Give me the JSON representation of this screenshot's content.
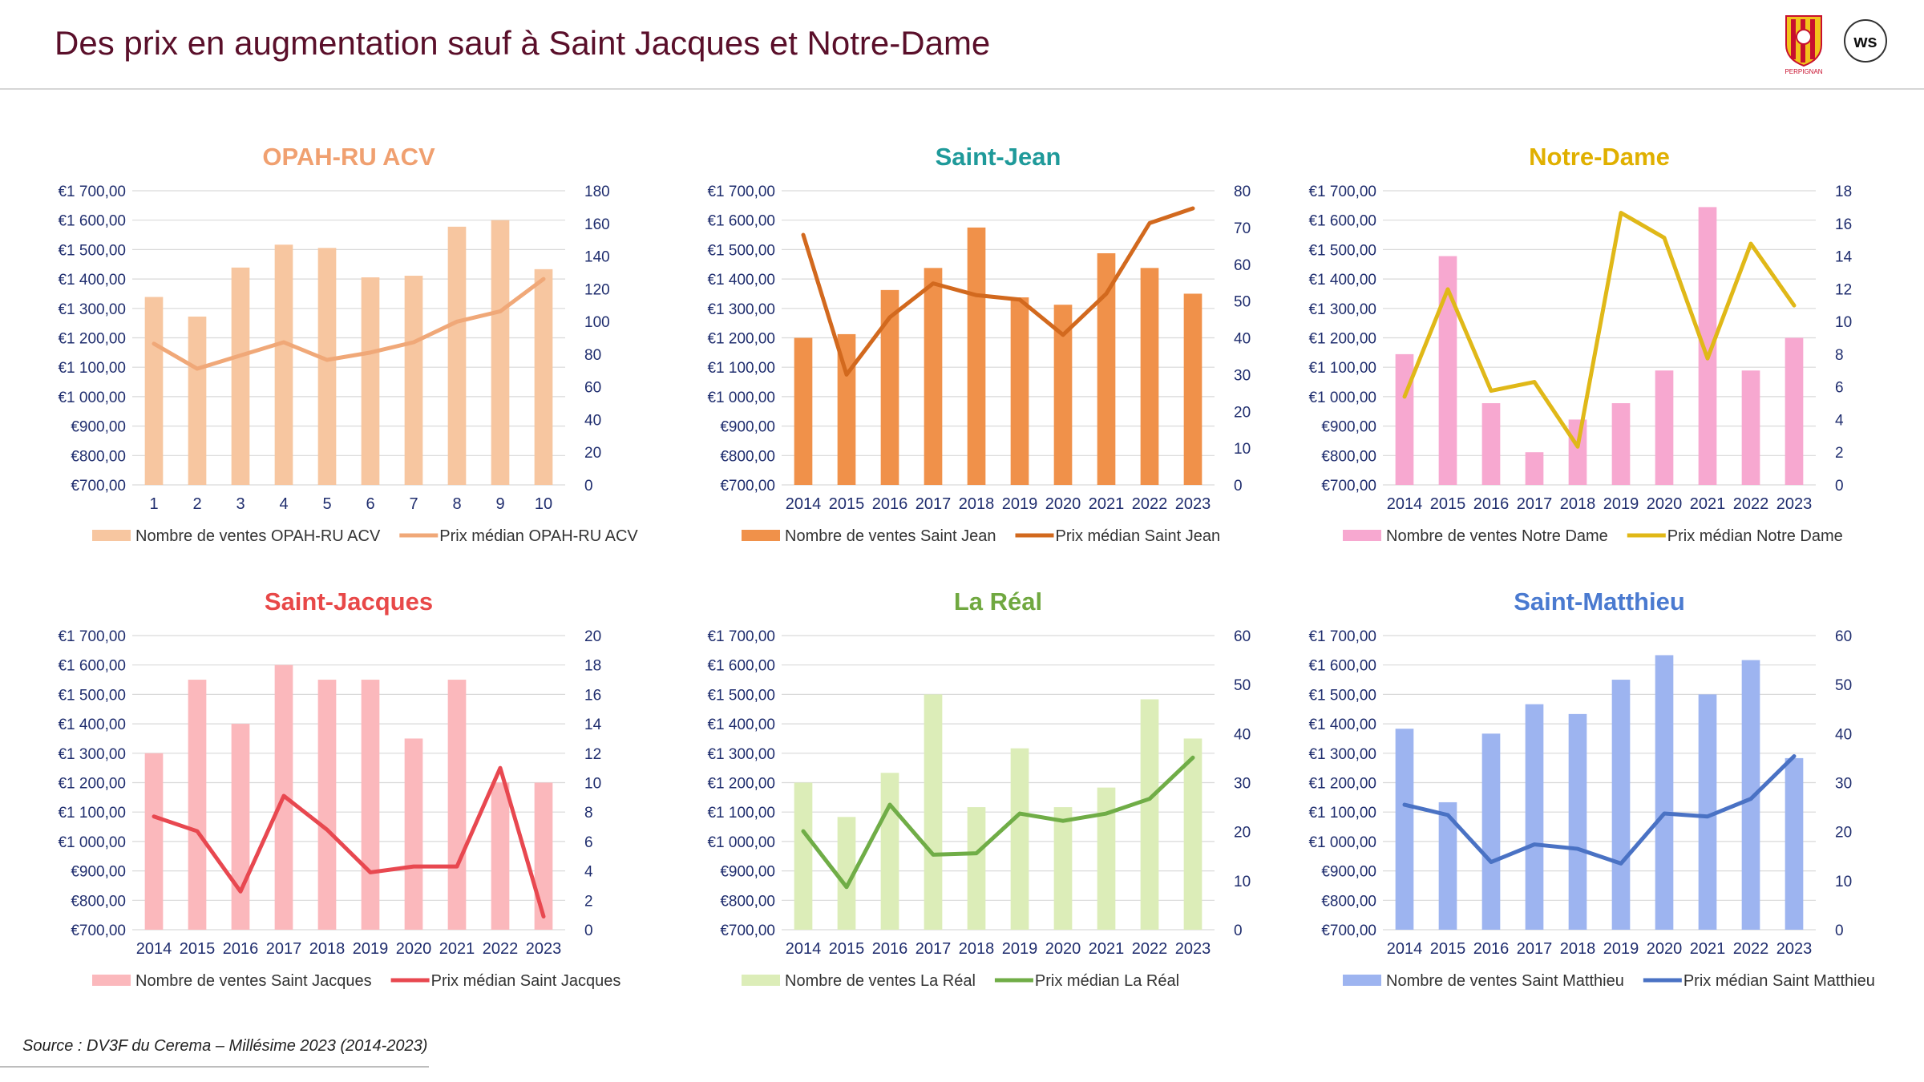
{
  "page": {
    "title": "Des prix en augmentation sauf à Saint Jacques et Notre-Dame",
    "source": "Source : DV3F du Cerema – Millésime 2023 (2014-2023)",
    "logo_crest_text": "PERPIGNAN",
    "logo_round_text": "ws"
  },
  "chart_data": [
    {
      "type": "bar",
      "title": "OPAH-RU ACV",
      "title_color": "#f0a070",
      "bar_color": "#f7c6a0",
      "line_color": "#f0a878",
      "categories": [
        "1",
        "2",
        "3",
        "4",
        "5",
        "6",
        "7",
        "8",
        "9",
        "10"
      ],
      "y_left": {
        "lim": [
          700,
          1700
        ],
        "ticks": [
          "€700,00",
          "€800,00",
          "€900,00",
          "€1 000,00",
          "€1 100,00",
          "€1 200,00",
          "€1 300,00",
          "€1 400,00",
          "€1 500,00",
          "€1 600,00",
          "€1 700,00"
        ]
      },
      "y_right": {
        "lim": [
          0,
          180
        ],
        "ticks": [
          "0",
          "20",
          "40",
          "60",
          "80",
          "100",
          "120",
          "140",
          "160",
          "180"
        ]
      },
      "series": [
        {
          "name": "Nombre de ventes OPAH-RU ACV",
          "axis": "right",
          "kind": "bar",
          "values": [
            115,
            103,
            133,
            147,
            145,
            127,
            128,
            158,
            162,
            132
          ]
        },
        {
          "name": "Prix médian OPAH-RU ACV",
          "axis": "left",
          "kind": "line",
          "values": [
            1180,
            1095,
            1140,
            1185,
            1125,
            1150,
            1185,
            1255,
            1290,
            1400
          ]
        }
      ]
    },
    {
      "type": "bar",
      "title": "Saint-Jean",
      "title_color": "#1f9a9a",
      "bar_color": "#f0914a",
      "line_color": "#d2691e",
      "categories": [
        "2014",
        "2015",
        "2016",
        "2017",
        "2018",
        "2019",
        "2020",
        "2021",
        "2022",
        "2023"
      ],
      "y_left": {
        "lim": [
          700,
          1700
        ],
        "ticks": [
          "€700,00",
          "€800,00",
          "€900,00",
          "€1 000,00",
          "€1 100,00",
          "€1 200,00",
          "€1 300,00",
          "€1 400,00",
          "€1 500,00",
          "€1 600,00",
          "€1 700,00"
        ]
      },
      "y_right": {
        "lim": [
          0,
          80
        ],
        "ticks": [
          "0",
          "10",
          "20",
          "30",
          "40",
          "50",
          "60",
          "70",
          "80"
        ]
      },
      "series": [
        {
          "name": "Nombre de ventes Saint Jean",
          "axis": "right",
          "kind": "bar",
          "values": [
            40,
            41,
            53,
            59,
            70,
            51,
            49,
            63,
            59,
            52
          ]
        },
        {
          "name": "Prix médian Saint Jean",
          "axis": "left",
          "kind": "line",
          "values": [
            1550,
            1075,
            1270,
            1385,
            1345,
            1330,
            1210,
            1350,
            1590,
            1640
          ]
        }
      ]
    },
    {
      "type": "bar",
      "title": "Notre-Dame",
      "title_color": "#e0b000",
      "bar_color": "#f7a8d0",
      "line_color": "#e0b818",
      "categories": [
        "2014",
        "2015",
        "2016",
        "2017",
        "2018",
        "2019",
        "2020",
        "2021",
        "2022",
        "2023"
      ],
      "y_left": {
        "lim": [
          700,
          1700
        ],
        "ticks": [
          "€700,00",
          "€800,00",
          "€900,00",
          "€1 000,00",
          "€1 100,00",
          "€1 200,00",
          "€1 300,00",
          "€1 400,00",
          "€1 500,00",
          "€1 600,00",
          "€1 700,00"
        ]
      },
      "y_right": {
        "lim": [
          0,
          18
        ],
        "ticks": [
          "0",
          "2",
          "4",
          "6",
          "8",
          "10",
          "12",
          "14",
          "16",
          "18"
        ]
      },
      "series": [
        {
          "name": "Nombre de ventes Notre Dame",
          "axis": "right",
          "kind": "bar",
          "values": [
            8,
            14,
            5,
            2,
            4,
            5,
            7,
            17,
            7,
            9
          ]
        },
        {
          "name": "Prix médian Notre Dame",
          "axis": "left",
          "kind": "line",
          "values": [
            1000,
            1365,
            1020,
            1050,
            830,
            1625,
            1540,
            1130,
            1520,
            1310
          ]
        }
      ]
    },
    {
      "type": "bar",
      "title": "Saint-Jacques",
      "title_color": "#e84848",
      "bar_color": "#fbb8bc",
      "line_color": "#e84850",
      "categories": [
        "2014",
        "2015",
        "2016",
        "2017",
        "2018",
        "2019",
        "2020",
        "2021",
        "2022",
        "2023"
      ],
      "y_left": {
        "lim": [
          700,
          1700
        ],
        "ticks": [
          "€700,00",
          "€800,00",
          "€900,00",
          "€1 000,00",
          "€1 100,00",
          "€1 200,00",
          "€1 300,00",
          "€1 400,00",
          "€1 500,00",
          "€1 600,00",
          "€1 700,00"
        ]
      },
      "y_right": {
        "lim": [
          0,
          20
        ],
        "ticks": [
          "0",
          "2",
          "4",
          "6",
          "8",
          "10",
          "12",
          "14",
          "16",
          "18",
          "20"
        ]
      },
      "series": [
        {
          "name": "Nombre de ventes Saint Jacques",
          "axis": "right",
          "kind": "bar",
          "values": [
            12,
            17,
            14,
            18,
            17,
            17,
            13,
            17,
            10,
            10
          ]
        },
        {
          "name": "Prix médian Saint Jacques",
          "axis": "left",
          "kind": "line",
          "values": [
            1085,
            1035,
            830,
            1155,
            1040,
            895,
            915,
            915,
            1250,
            745
          ]
        }
      ]
    },
    {
      "type": "bar",
      "title": "La Réal",
      "title_color": "#70a840",
      "bar_color": "#dcedb8",
      "line_color": "#70ad47",
      "categories": [
        "2014",
        "2015",
        "2016",
        "2017",
        "2018",
        "2019",
        "2020",
        "2021",
        "2022",
        "2023"
      ],
      "y_left": {
        "lim": [
          700,
          1700
        ],
        "ticks": [
          "€700,00",
          "€800,00",
          "€900,00",
          "€1 000,00",
          "€1 100,00",
          "€1 200,00",
          "€1 300,00",
          "€1 400,00",
          "€1 500,00",
          "€1 600,00",
          "€1 700,00"
        ]
      },
      "y_right": {
        "lim": [
          0,
          60
        ],
        "ticks": [
          "0",
          "10",
          "20",
          "30",
          "40",
          "50",
          "60"
        ]
      },
      "series": [
        {
          "name": "Nombre de ventes La Réal",
          "axis": "right",
          "kind": "bar",
          "values": [
            30,
            23,
            32,
            48,
            25,
            37,
            25,
            29,
            47,
            39
          ]
        },
        {
          "name": "Prix médian La Réal",
          "axis": "left",
          "kind": "line",
          "values": [
            1035,
            845,
            1125,
            955,
            960,
            1095,
            1070,
            1095,
            1145,
            1285
          ]
        }
      ]
    },
    {
      "type": "bar",
      "title": "Saint-Matthieu",
      "title_color": "#4a7ad0",
      "bar_color": "#9db4f0",
      "line_color": "#4a72c4",
      "categories": [
        "2014",
        "2015",
        "2016",
        "2017",
        "2018",
        "2019",
        "2020",
        "2021",
        "2022",
        "2023"
      ],
      "y_left": {
        "lim": [
          700,
          1700
        ],
        "ticks": [
          "€700,00",
          "€800,00",
          "€900,00",
          "€1 000,00",
          "€1 100,00",
          "€1 200,00",
          "€1 300,00",
          "€1 400,00",
          "€1 500,00",
          "€1 600,00",
          "€1 700,00"
        ]
      },
      "y_right": {
        "lim": [
          0,
          60
        ],
        "ticks": [
          "0",
          "10",
          "20",
          "30",
          "40",
          "50",
          "60"
        ]
      },
      "series": [
        {
          "name": "Nombre de ventes Saint Matthieu",
          "axis": "right",
          "kind": "bar",
          "values": [
            41,
            26,
            40,
            46,
            44,
            51,
            56,
            48,
            55,
            35
          ]
        },
        {
          "name": "Prix médian Saint Matthieu",
          "axis": "left",
          "kind": "line",
          "values": [
            1125,
            1090,
            930,
            990,
            975,
            925,
            1095,
            1085,
            1145,
            1290
          ]
        }
      ]
    }
  ]
}
